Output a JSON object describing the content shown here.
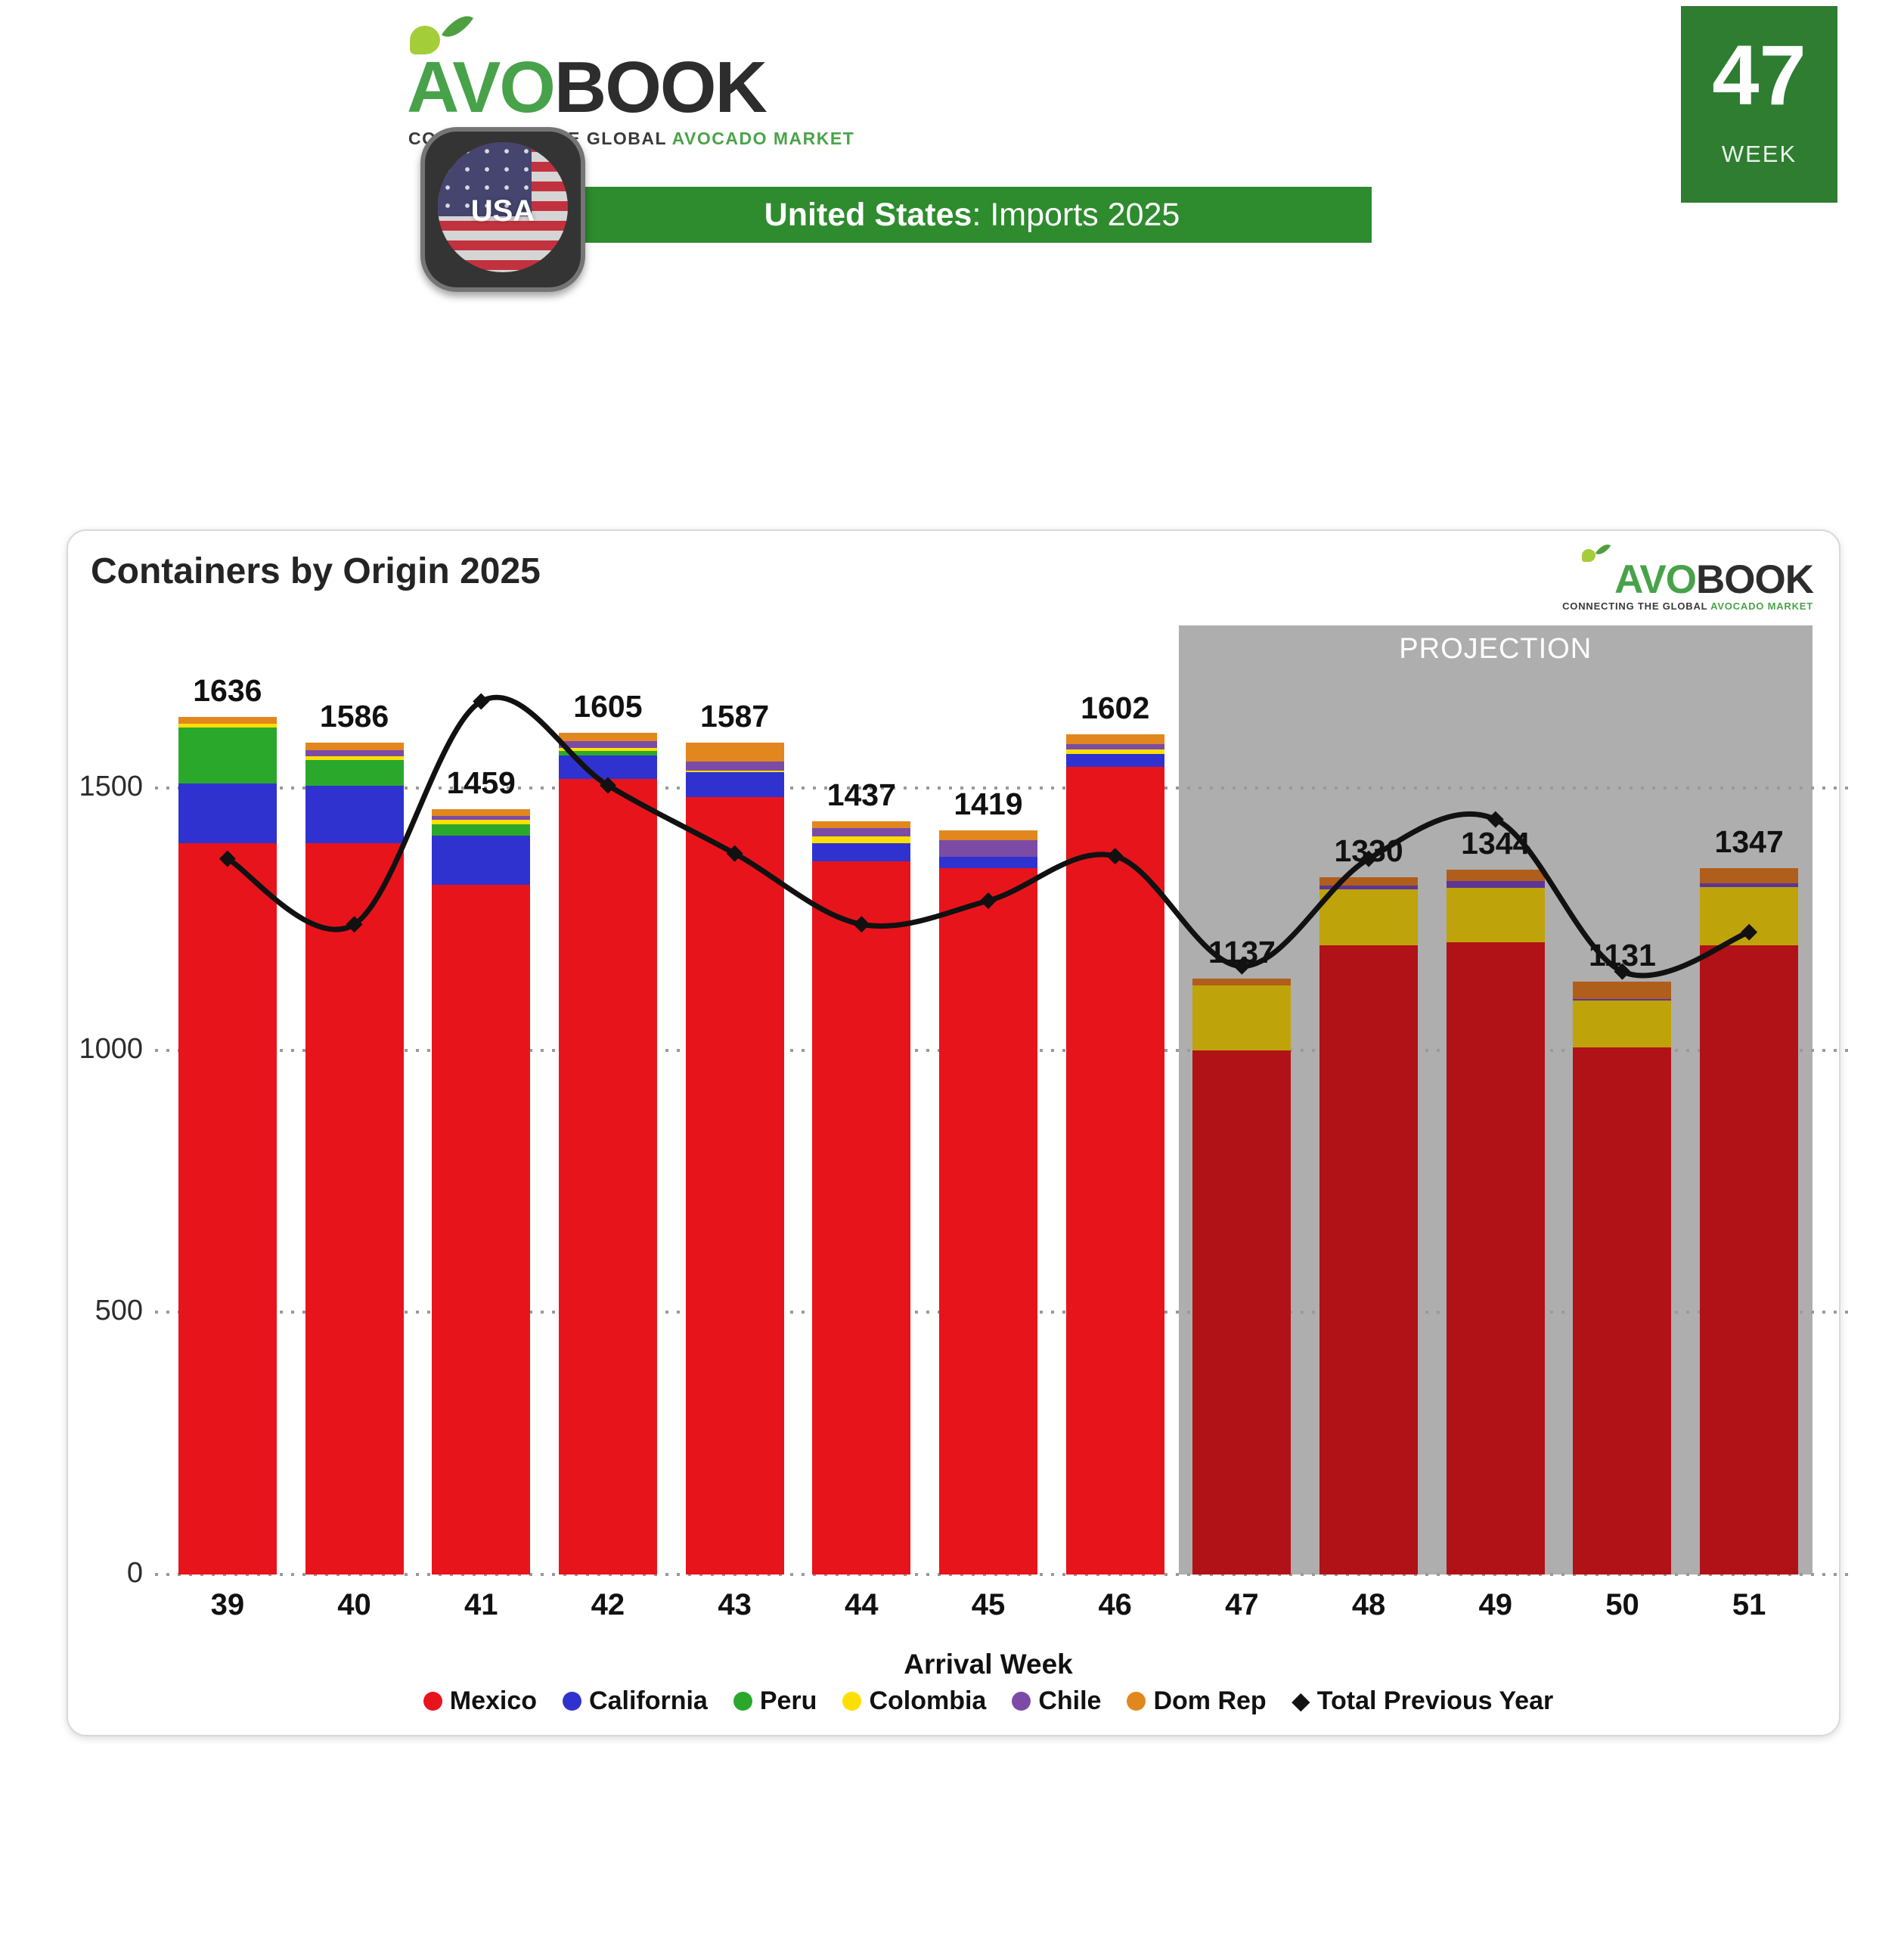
{
  "header": {
    "logo": {
      "brand_green": "AVO",
      "brand_dark": "BOOK",
      "tagline_dark": "CONNECTING THE GLOBAL",
      "tagline_green": "AVOCADO MARKET"
    },
    "flag_label": "USA",
    "banner_bold": "United States",
    "banner_rest": ": Imports 2025",
    "week_number": "47",
    "week_label": "WEEK"
  },
  "chart_data": {
    "type": "bar",
    "stacked": true,
    "title": "Containers by Origin 2025",
    "xlabel": "Arrival Week",
    "ylabel": "",
    "ylim": [
      0,
      1810
    ],
    "yticks": [
      0,
      500,
      1000,
      1500
    ],
    "grid": "dotted-horizontal",
    "legend_position": "bottom",
    "projection_label": "PROJECTION",
    "projection_background": "#aeaeae",
    "categories": [
      39,
      40,
      41,
      42,
      43,
      44,
      45,
      46,
      47,
      48,
      49,
      50,
      51
    ],
    "projection_categories": [
      47,
      48,
      49,
      50,
      51
    ],
    "totals": [
      1636,
      1586,
      1459,
      1605,
      1587,
      1437,
      1419,
      1602,
      1137,
      1330,
      1344,
      1131,
      1347
    ],
    "series": [
      {
        "name": "Mexico",
        "color": "#e8141c",
        "projection_color": "#b11217",
        "values": [
          1395,
          1394,
          1315,
          1517,
          1483,
          1360,
          1347,
          1541,
          1000,
          1200,
          1205,
          1005,
          1200
        ]
      },
      {
        "name": "California",
        "color": "#3032cf",
        "projection_color": "#3032cf",
        "values": [
          113,
          110,
          94,
          45,
          47,
          34,
          22,
          24,
          0,
          0,
          0,
          0,
          0
        ]
      },
      {
        "name": "Peru",
        "color": "#2aa82c",
        "projection_color": "#2aa82c",
        "values": [
          108,
          49,
          22,
          8,
          0,
          0,
          0,
          0,
          0,
          0,
          0,
          0,
          0
        ]
      },
      {
        "name": "Colombia",
        "color": "#ffdf00",
        "projection_color": "#bfa30a",
        "values": [
          7,
          7,
          9,
          6,
          3,
          13,
          0,
          8,
          123,
          107,
          104,
          90,
          111
        ]
      },
      {
        "name": "Chile",
        "color": "#7b4ba5",
        "projection_color": "#5c3696",
        "values": [
          0,
          12,
          6,
          14,
          18,
          16,
          32,
          10,
          0,
          7,
          13,
          3,
          7
        ]
      },
      {
        "name": "Dom Rep",
        "color": "#e1871d",
        "projection_color": "#b05e1b",
        "values": [
          13,
          14,
          13,
          15,
          36,
          14,
          18,
          19,
          14,
          16,
          22,
          33,
          29
        ]
      }
    ],
    "line_series": {
      "name": "Total Previous Year",
      "color": "#111111",
      "marker": "diamond",
      "values": [
        1365,
        1240,
        1665,
        1505,
        1375,
        1240,
        1285,
        1370,
        1160,
        1365,
        1440,
        1150,
        1225
      ]
    }
  }
}
